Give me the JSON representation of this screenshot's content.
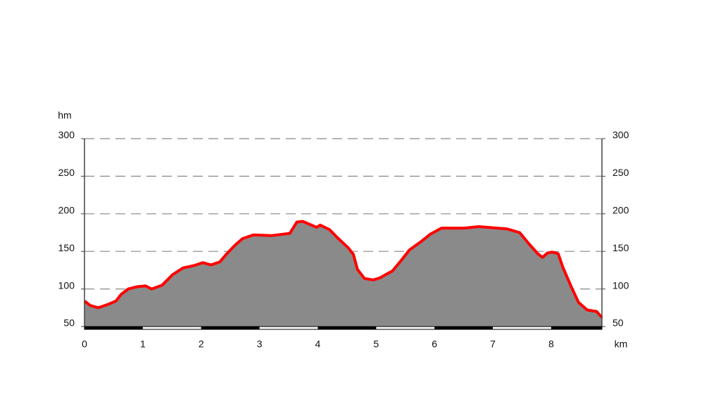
{
  "chart_data": {
    "type": "area",
    "y_label": "hm",
    "x_label": "km",
    "x": [
      0,
      0.1,
      0.24,
      0.42,
      0.54,
      0.63,
      0.75,
      0.9,
      1.05,
      1.15,
      1.33,
      1.51,
      1.69,
      1.87,
      2.03,
      2.17,
      2.32,
      2.44,
      2.59,
      2.71,
      2.9,
      3.2,
      3.52,
      3.64,
      3.74,
      3.98,
      4.04,
      4.2,
      4.34,
      4.52,
      4.61,
      4.68,
      4.8,
      4.95,
      5.07,
      5.16,
      5.28,
      5.43,
      5.57,
      5.77,
      5.93,
      6.12,
      6.51,
      6.76,
      7.24,
      7.46,
      7.62,
      7.77,
      7.85,
      7.94,
      8.02,
      8.12,
      8.2,
      8.35,
      8.47,
      8.62,
      8.78,
      8.87
    ],
    "values": [
      84,
      78,
      75,
      80,
      84,
      93,
      100,
      103,
      104,
      100,
      105,
      119,
      128,
      131,
      135,
      132,
      136,
      147,
      159,
      167,
      172,
      171,
      174,
      189,
      190,
      182,
      185,
      179,
      168,
      155,
      146,
      126,
      114,
      112,
      115,
      119,
      124,
      138,
      152,
      163,
      173,
      181,
      181,
      183,
      180,
      175,
      160,
      147,
      142,
      148,
      149,
      147,
      129,
      102,
      82,
      72,
      70,
      62
    ],
    "color": "#ff0000",
    "xlim": [
      0,
      8.87
    ],
    "xticks": [
      0,
      1,
      2,
      3,
      4,
      5,
      6,
      7,
      8
    ],
    "ylim": [
      50,
      300
    ],
    "yticks": [
      50,
      100,
      150,
      200,
      250,
      300
    ],
    "y2lim": [
      50,
      300
    ],
    "y2ticks": [
      50,
      100,
      150,
      200,
      250,
      300
    ],
    "grid": true
  }
}
